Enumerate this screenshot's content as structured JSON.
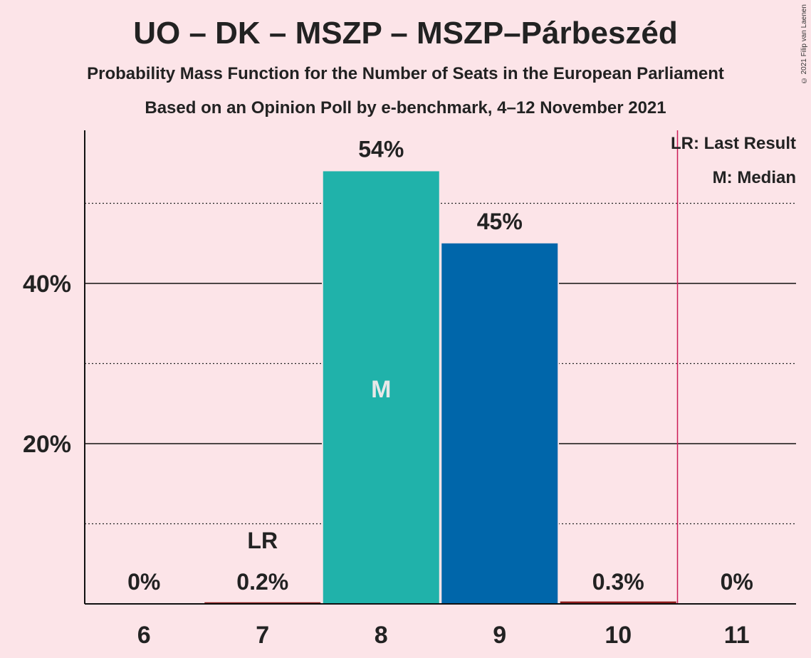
{
  "title": "UO – DK – MSZP – MSZP–Párbeszéd",
  "subtitle": "Probability Mass Function for the Number of Seats in the European Parliament",
  "subtitle2": "Based on an Opinion Poll by e-benchmark, 4–12 November 2021",
  "copyright": "© 2021 Filip van Laenen",
  "legend": {
    "last_result": "LR: Last Result",
    "median": "M: Median"
  },
  "colors": {
    "background": "#fce4e8",
    "median_bar": "#20b2aa",
    "other_bar": "#0066aa",
    "last_result_line": "#cc1a56",
    "small_bar": "#8b1a1a"
  },
  "chart_data": {
    "type": "bar",
    "categories": [
      "6",
      "7",
      "8",
      "9",
      "10",
      "11"
    ],
    "values": [
      0,
      0.2,
      54,
      45,
      0.3,
      0
    ],
    "data_labels": [
      "0%",
      "0.2%",
      "54%",
      "45%",
      "0.3%",
      "0%"
    ],
    "ytick_labels": [
      "20%",
      "40%"
    ],
    "yticks": [
      20,
      40
    ],
    "minor_gridlines": [
      10,
      30,
      50
    ],
    "ylim": [
      0,
      59
    ],
    "last_result_category": "7",
    "last_result_label": "LR",
    "median_category": "8",
    "median_label": "M",
    "majority_threshold_between": [
      "10",
      "11"
    ]
  }
}
